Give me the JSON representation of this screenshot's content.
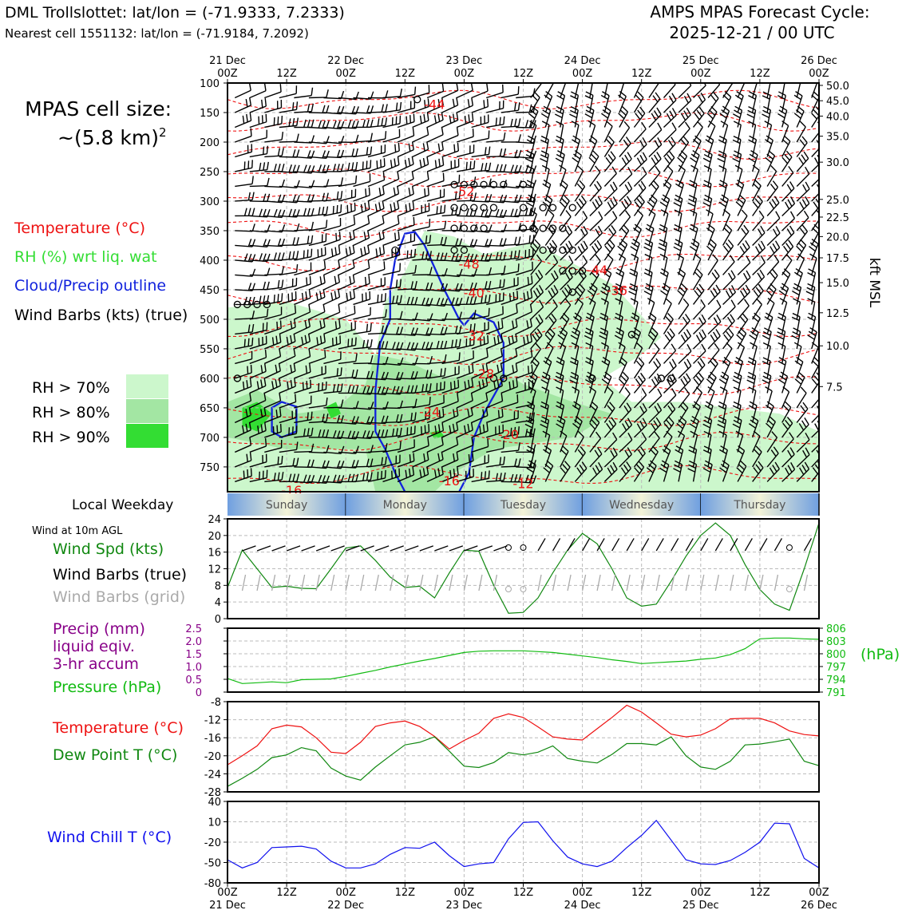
{
  "header": {
    "station_title": "DML Trollslottet: lat/lon = (-71.9333, 7.2333)",
    "nearest_cell": "Nearest cell 1551132: lat/lon = (-71.9184, 7.2092)",
    "forecast_line1": "AMPS MPAS Forecast Cycle:",
    "forecast_line2": "2025-12-21 / 00 UTC"
  },
  "legend": {
    "cell_size_label": "MPAS cell size:",
    "cell_size_value": "~(5.8 km)",
    "cell_size_exp": "2",
    "temperature": "Temperature (°C)",
    "rh": "RH (%) wrt liq. wat",
    "cloud": "Cloud/Precip outline",
    "barbs": "Wind Barbs (kts) (true)",
    "rh70": "RH > 70%",
    "rh80": "RH > 80%",
    "rh90": "RH > 90%",
    "local_weekday": "Local Weekday",
    "wind_10m": "Wind at 10m AGL",
    "wind_spd": "Wind Spd (kts)",
    "wind_barbs_true": "Wind Barbs (true)",
    "wind_barbs_grid": "Wind Barbs (grid)",
    "precip_1": "Precip (mm)",
    "precip_2": "liquid eqiv.",
    "precip_3": "3-hr accum",
    "pressure": "Pressure (hPa)",
    "pressure_unit": "(hPa)",
    "temp2": "Temperature (°C)",
    "dewpoint": "Dew Point T (°C)",
    "windchill": "Wind Chill T (°C)",
    "kft_label": "kft MSL"
  },
  "colors": {
    "temperature": "#ee1111",
    "rh_text": "#33dd33",
    "cloud": "#1122dd",
    "dewpoint": "#118811",
    "pressure": "#11bb11",
    "precip": "#880088",
    "windchill": "#1111ee",
    "rh70": "#ccf7cc",
    "rh80": "#a3e6a3",
    "rh90": "#33dd33"
  },
  "chart_data": {
    "time_ticks_top": [
      [
        "21 Dec",
        "00Z"
      ],
      [
        "",
        "12Z"
      ],
      [
        "22 Dec",
        "00Z"
      ],
      [
        "",
        "12Z"
      ],
      [
        "23 Dec",
        "00Z"
      ],
      [
        "",
        "12Z"
      ],
      [
        "24 Dec",
        "00Z"
      ],
      [
        "",
        "12Z"
      ],
      [
        "25 Dec",
        "00Z"
      ],
      [
        "",
        "12Z"
      ],
      [
        "26 Dec",
        "00Z"
      ]
    ],
    "time_ticks_bottom": [
      [
        "00Z",
        "21 Dec"
      ],
      [
        "12Z",
        ""
      ],
      [
        "00Z",
        "22 Dec"
      ],
      [
        "12Z",
        ""
      ],
      [
        "00Z",
        "23 Dec"
      ],
      [
        "12Z",
        ""
      ],
      [
        "00Z",
        "24 Dec"
      ],
      [
        "12Z",
        ""
      ],
      [
        "00Z",
        "25 Dec"
      ],
      [
        "12Z",
        ""
      ],
      [
        "00Z",
        "26 Dec"
      ]
    ],
    "hours_total": 120,
    "cross_section": {
      "type": "time-height",
      "pressure_ticks": [
        100,
        150,
        200,
        250,
        300,
        350,
        400,
        450,
        500,
        550,
        600,
        650,
        700,
        750
      ],
      "pressure_bottom": 792,
      "kft_ticks": [
        "50.0",
        "45.0",
        "40.0",
        "35.0",
        "30.0",
        "25.0",
        "22.5",
        "20.0",
        "17.5",
        "15.0",
        "12.5",
        "10.0",
        "7.5"
      ],
      "kft_pressure": [
        104,
        130,
        156,
        190,
        234,
        297,
        327,
        360,
        396,
        438,
        489,
        545,
        614
      ],
      "temperature_labels": [
        {
          "t": 42,
          "p": 136,
          "v": "-44"
        },
        {
          "t": 48,
          "p": 283,
          "v": "-52"
        },
        {
          "t": 49,
          "p": 406,
          "v": "-48"
        },
        {
          "t": 50,
          "p": 455,
          "v": "-40"
        },
        {
          "t": 50,
          "p": 528,
          "v": "-32"
        },
        {
          "t": 52,
          "p": 592,
          "v": "-28"
        },
        {
          "t": 41,
          "p": 656,
          "v": "-24"
        },
        {
          "t": 57,
          "p": 695,
          "v": "-20"
        },
        {
          "t": 45,
          "p": 773,
          "v": "-16"
        },
        {
          "t": 13,
          "p": 789,
          "v": "-16"
        },
        {
          "t": 60,
          "p": 778,
          "v": "-12"
        },
        {
          "t": 75,
          "p": 416,
          "v": "-44"
        },
        {
          "t": 79,
          "p": 451,
          "v": "-36"
        }
      ],
      "temperature_contour_pressures": [
        128,
        165,
        212,
        258,
        300,
        343,
        400,
        455,
        512,
        560,
        612,
        665,
        708,
        765
      ]
    },
    "local_weekday": [
      "Sunday",
      "Monday",
      "Tuesday",
      "Wednesday",
      "Thursday"
    ],
    "wind_speed": {
      "type": "line",
      "ylabel": "Wind Spd (kts)",
      "ylim": [
        0,
        24
      ],
      "yticks": [
        0,
        4,
        8,
        12,
        16,
        20,
        24
      ],
      "x_hours": [
        0,
        3,
        6,
        9,
        12,
        15,
        18,
        21,
        24,
        27,
        30,
        33,
        36,
        39,
        42,
        45,
        48,
        51,
        54,
        57,
        60,
        63,
        66,
        69,
        72,
        75,
        78,
        81,
        84,
        87,
        90,
        93,
        96,
        99,
        102,
        105,
        108,
        111,
        114,
        117,
        120
      ],
      "values": [
        7.5,
        16.5,
        12,
        7.5,
        7.8,
        7.3,
        7.2,
        12,
        17,
        17.5,
        14,
        10,
        7.5,
        7.8,
        5,
        11,
        16.5,
        16.2,
        8,
        1.3,
        1.5,
        5,
        11,
        16.5,
        20.5,
        18,
        12,
        5,
        3,
        3.5,
        9,
        15,
        20,
        23,
        20,
        13,
        7,
        3.5,
        2,
        12,
        23
      ]
    },
    "precip_pressure": {
      "type": "line",
      "precip_yticks": [
        "0",
        "0.5",
        "1.0",
        "1.5",
        "2.0",
        "2.5"
      ],
      "pressure_yticks": [
        "791",
        "794",
        "797",
        "800",
        "803",
        "806"
      ],
      "pressure_ylim": [
        791,
        806
      ],
      "x_hours": [
        0,
        3,
        6,
        9,
        12,
        15,
        18,
        21,
        24,
        27,
        30,
        33,
        36,
        39,
        42,
        45,
        48,
        51,
        54,
        57,
        60,
        63,
        66,
        69,
        72,
        75,
        78,
        81,
        84,
        87,
        90,
        93,
        96,
        99,
        102,
        105,
        108,
        111,
        114,
        117,
        120
      ],
      "pressure": [
        794.2,
        793.0,
        793.2,
        793.4,
        793.2,
        793.9,
        794.0,
        794.1,
        794.7,
        795.4,
        796.1,
        796.9,
        797.6,
        798.3,
        798.9,
        799.6,
        800.3,
        800.6,
        800.7,
        800.7,
        800.7,
        800.5,
        800.3,
        799.9,
        799.5,
        799.1,
        798.6,
        798.2,
        797.7,
        797.9,
        798.1,
        798.3,
        798.7,
        799.0,
        799.8,
        801.2,
        803.5,
        803.7,
        803.7,
        803.5,
        803.4
      ]
    },
    "temperature_dewpoint": {
      "type": "line",
      "ylim": [
        -28,
        -8
      ],
      "yticks": [
        -28,
        -24,
        -20,
        -16,
        -12,
        -8
      ],
      "x_hours": [
        0,
        3,
        6,
        9,
        12,
        15,
        18,
        21,
        24,
        27,
        30,
        33,
        36,
        39,
        42,
        45,
        48,
        51,
        54,
        57,
        60,
        63,
        66,
        69,
        72,
        75,
        78,
        81,
        84,
        87,
        90,
        93,
        96,
        99,
        102,
        105,
        108,
        111,
        114,
        117,
        120
      ],
      "temperature": [
        -22,
        -20,
        -17.8,
        -14,
        -13.2,
        -13.6,
        -16,
        -19.2,
        -19.5,
        -17,
        -13.5,
        -12.7,
        -12.3,
        -13.5,
        -15.7,
        -18.5,
        -16.6,
        -15,
        -11.7,
        -10.7,
        -11.5,
        -13.6,
        -15.8,
        -16.3,
        -16.5,
        -14,
        -11.5,
        -8.8,
        -10.3,
        -12.7,
        -15.2,
        -15.8,
        -15.4,
        -14,
        -11.8,
        -11.7,
        -11.7,
        -12.7,
        -14.5,
        -15.3,
        -15.6
      ],
      "dewpoint": [
        -26.8,
        -25,
        -23,
        -20.4,
        -19.8,
        -18.2,
        -18.9,
        -22.7,
        -24.5,
        -25.4,
        -22.5,
        -20,
        -17.6,
        -17,
        -15.8,
        -19,
        -22.3,
        -22.6,
        -21.5,
        -19.3,
        -19.8,
        -19.2,
        -17.8,
        -20.6,
        -21.2,
        -21.6,
        -19.7,
        -17.3,
        -17.3,
        -17.6,
        -15.8,
        -20,
        -22.5,
        -23,
        -21.2,
        -17.6,
        -17.4,
        -16.9,
        -16.3,
        -21.2,
        -22.2
      ]
    },
    "wind_chill": {
      "type": "line",
      "ylim": [
        -80,
        40
      ],
      "yticks": [
        -80,
        -50,
        -20,
        10,
        40
      ],
      "x_hours": [
        0,
        3,
        6,
        9,
        12,
        15,
        18,
        21,
        24,
        27,
        30,
        33,
        36,
        39,
        42,
        45,
        48,
        51,
        54,
        57,
        60,
        63,
        66,
        69,
        72,
        75,
        78,
        81,
        84,
        87,
        90,
        93,
        96,
        99,
        102,
        105,
        108,
        111,
        114,
        117,
        120
      ],
      "values": [
        -46,
        -58,
        -50,
        -28,
        -27,
        -26,
        -30,
        -48,
        -58,
        -58,
        -52,
        -38,
        -28,
        -29,
        -20,
        -40,
        -56,
        -52,
        -50,
        -15,
        9,
        10,
        -18,
        -42,
        -52,
        -56,
        -48,
        -28,
        -10,
        12,
        -17,
        -46,
        -52,
        -53,
        -47,
        -35,
        -20,
        8,
        7,
        -44,
        -58
      ]
    },
    "surface_barb_calm_markers": [
      "o",
      "o"
    ]
  }
}
